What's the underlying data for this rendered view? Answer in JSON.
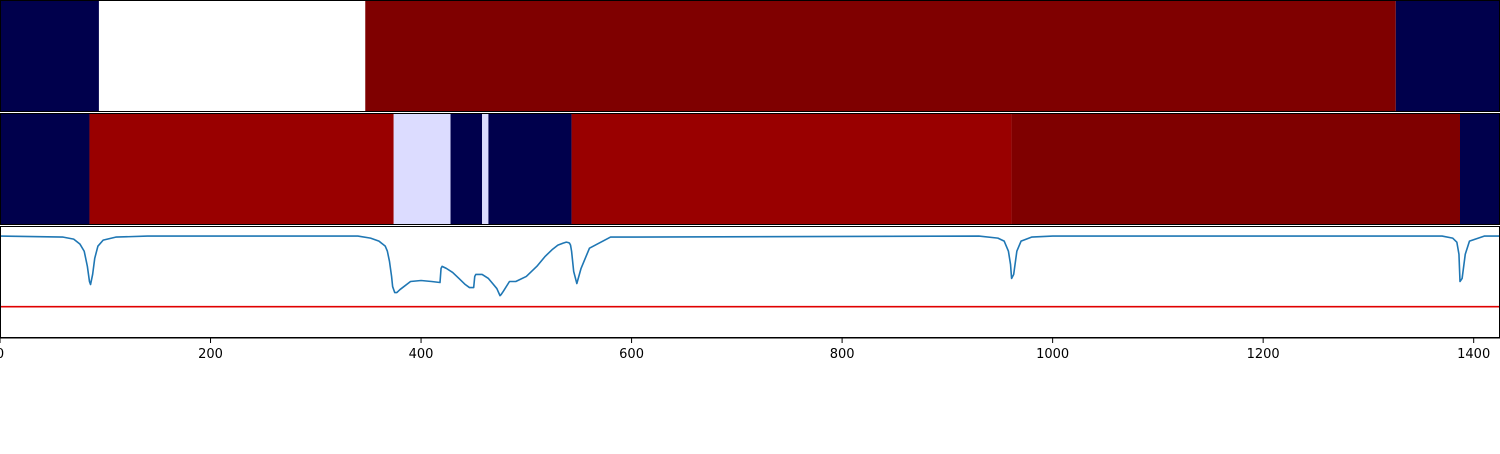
{
  "chart_data": {
    "type": "heatmap",
    "title": "",
    "xlabel": "",
    "ylabel": "",
    "xlim": [
      0,
      1425
    ],
    "grid": false,
    "legend": "none",
    "x_ticks": [
      0,
      200,
      400,
      600,
      800,
      1000,
      1200,
      1400
    ],
    "x_tick_labels": [
      "0",
      "200",
      "400",
      "600",
      "800",
      "1000",
      "1200",
      "1400"
    ],
    "rows": [
      {
        "segments": [
          {
            "start": 0,
            "end": 94,
            "color": "#00004c"
          },
          {
            "start": 94,
            "end": 347,
            "color": "#ffffff"
          },
          {
            "start": 347,
            "end": 1326,
            "color": "#7f0000"
          },
          {
            "start": 1326,
            "end": 1425,
            "color": "#00004c"
          }
        ]
      },
      {
        "segments": [
          {
            "start": 0,
            "end": 85,
            "color": "#00004c"
          },
          {
            "start": 85,
            "end": 374,
            "color": "#990000"
          },
          {
            "start": 374,
            "end": 428,
            "color": "#dcdcff"
          },
          {
            "start": 428,
            "end": 458,
            "color": "#00004c"
          },
          {
            "start": 458,
            "end": 464,
            "color": "#dcdcff"
          },
          {
            "start": 464,
            "end": 543,
            "color": "#00004c"
          },
          {
            "start": 543,
            "end": 961,
            "color": "#990000"
          },
          {
            "start": 961,
            "end": 1387,
            "color": "#7f0000"
          },
          {
            "start": 1387,
            "end": 1425,
            "color": "#00004c"
          }
        ]
      }
    ],
    "line_plot": {
      "ylim": [
        0,
        1.1
      ],
      "threshold": 0.3,
      "line_color": "#1f77b4",
      "threshold_color": "#e00000",
      "x": [
        0,
        60,
        70,
        76,
        80,
        83,
        85,
        86,
        88,
        90,
        93,
        98,
        110,
        140,
        340,
        352,
        360,
        366,
        368,
        370,
        372,
        373,
        375,
        377,
        380,
        390,
        400,
        410,
        418,
        419,
        420,
        424,
        430,
        436,
        442,
        446,
        450,
        451,
        452,
        458,
        464,
        468,
        472,
        475,
        476,
        478,
        484,
        490,
        500,
        510,
        518,
        525,
        530,
        535,
        538,
        540,
        541,
        542,
        543,
        545,
        548,
        552,
        560,
        580,
        930,
        948,
        954,
        958,
        960,
        961,
        963,
        966,
        970,
        980,
        1000,
        1370,
        1380,
        1384,
        1386,
        1387,
        1389,
        1392,
        1396,
        1410,
        1425
      ],
      "y": [
        1.0,
        0.99,
        0.97,
        0.92,
        0.85,
        0.7,
        0.55,
        0.52,
        0.62,
        0.78,
        0.9,
        0.96,
        0.99,
        1.0,
        1.0,
        0.98,
        0.95,
        0.9,
        0.85,
        0.75,
        0.6,
        0.5,
        0.44,
        0.44,
        0.47,
        0.55,
        0.56,
        0.55,
        0.54,
        0.68,
        0.7,
        0.68,
        0.64,
        0.58,
        0.52,
        0.49,
        0.49,
        0.6,
        0.62,
        0.62,
        0.58,
        0.53,
        0.48,
        0.41,
        0.42,
        0.45,
        0.55,
        0.55,
        0.6,
        0.7,
        0.8,
        0.87,
        0.91,
        0.93,
        0.94,
        0.935,
        0.93,
        0.91,
        0.85,
        0.65,
        0.53,
        0.68,
        0.88,
        0.99,
        1.0,
        0.98,
        0.95,
        0.85,
        0.72,
        0.58,
        0.62,
        0.85,
        0.95,
        0.99,
        1.0,
        1.0,
        0.98,
        0.94,
        0.82,
        0.55,
        0.58,
        0.82,
        0.95,
        1.0,
        1.0
      ]
    }
  }
}
